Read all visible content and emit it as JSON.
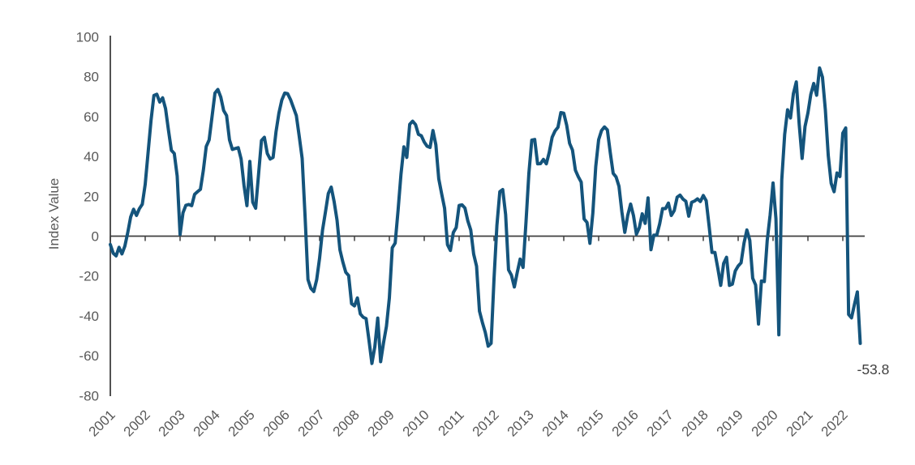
{
  "chart_data": {
    "type": "line",
    "title": "",
    "ylabel": "Index Value",
    "xlabel": "",
    "ylim": [
      -80,
      100
    ],
    "grid": false,
    "legend": {
      "visible": false
    },
    "axis_color": "#3f3f3f",
    "tick_label_color": "#595959",
    "annotation_color": "#404040",
    "y_tick_values": [
      100,
      80,
      60,
      40,
      20,
      0,
      -20,
      -40,
      -60,
      -80
    ],
    "x_tick_labels": [
      "2001",
      "2002",
      "2003",
      "2004",
      "2005",
      "2006",
      "2007",
      "2008",
      "2009",
      "2010",
      "2011",
      "2012",
      "2013",
      "2014",
      "2015",
      "2016",
      "2017",
      "2018",
      "2019",
      "2020",
      "2021",
      "2022"
    ],
    "frequency": "monthly",
    "start_label": "2001",
    "series": [
      {
        "name": "Index Value",
        "color": "#14547C",
        "values": [
          -4.2,
          -8.6,
          -9.9,
          -5.6,
          -8.9,
          -5.0,
          1.8,
          9.6,
          13.5,
          10.4,
          13.8,
          16.0,
          26.0,
          42.0,
          58.0,
          70.6,
          71.2,
          67.3,
          69.4,
          64.0,
          53.2,
          43.1,
          41.5,
          30.2,
          0.8,
          11.7,
          15.5,
          15.9,
          15.3,
          21.0,
          22.3,
          23.5,
          33.0,
          45.0,
          48.3,
          60.0,
          71.8,
          73.6,
          69.8,
          63.0,
          60.5,
          48.3,
          43.5,
          44.0,
          44.4,
          38.7,
          25.4,
          15.3,
          37.5,
          17.0,
          14.0,
          31.0,
          48.0,
          49.6,
          41.5,
          38.7,
          39.5,
          52.3,
          61.7,
          68.3,
          71.8,
          71.5,
          68.5,
          64.5,
          60.5,
          50.0,
          39.0,
          10.0,
          -21.8,
          -26.2,
          -27.8,
          -21.8,
          -11.0,
          2.9,
          12.0,
          21.4,
          24.6,
          17.3,
          8.0,
          -6.9,
          -13.0,
          -18.1,
          -19.8,
          -33.9,
          -35.0,
          -31.0,
          -39.0,
          -40.7,
          -41.4,
          -52.4,
          -63.9,
          -55.5,
          -41.1,
          -63.0,
          -53.5,
          -45.2,
          -31.0,
          -5.8,
          -3.5,
          13.0,
          31.1,
          44.8,
          39.5,
          56.1,
          57.7,
          56.0,
          51.1,
          50.4,
          47.2,
          45.1,
          44.5,
          53.0,
          45.8,
          28.7,
          21.2,
          14.0,
          -4.3,
          -7.2,
          1.8,
          4.3,
          15.4,
          15.7,
          14.1,
          7.6,
          3.1,
          -9.0,
          -15.1,
          -37.6,
          -43.3,
          -48.3,
          -55.2,
          -53.8,
          -21.6,
          5.4,
          22.3,
          23.4,
          10.8,
          -16.9,
          -19.6,
          -25.5,
          -18.2,
          -11.5,
          -15.7,
          6.9,
          31.5,
          48.2,
          48.5,
          36.3,
          36.4,
          38.5,
          36.3,
          42.0,
          49.6,
          52.8,
          54.6,
          62.0,
          61.7,
          55.7,
          46.6,
          43.2,
          33.1,
          29.8,
          27.1,
          8.6,
          6.9,
          -3.6,
          11.5,
          34.9,
          48.4,
          53.0,
          54.8,
          53.3,
          41.9,
          31.5,
          29.7,
          25.0,
          12.1,
          1.9,
          10.4,
          16.1,
          10.2,
          1.0,
          4.3,
          11.2,
          6.4,
          19.2,
          -6.8,
          0.5,
          0.5,
          6.2,
          13.8,
          13.8,
          16.6,
          10.4,
          12.8,
          19.5,
          20.6,
          18.6,
          17.5,
          10.0,
          17.0,
          17.6,
          18.7,
          17.4,
          20.4,
          17.8,
          5.1,
          -8.2,
          -8.2,
          -16.1,
          -24.7,
          -13.7,
          -10.6,
          -24.7,
          -24.1,
          -17.5,
          -15.0,
          -13.4,
          -3.6,
          3.1,
          -2.1,
          -21.1,
          -24.5,
          -44.1,
          -22.5,
          -22.8,
          -2.1,
          10.7,
          26.7,
          8.7,
          -49.5,
          28.2,
          51.0,
          63.4,
          59.3,
          71.5,
          77.4,
          56.1,
          39.0,
          55.0,
          61.8,
          71.2,
          76.6,
          70.7,
          84.4,
          79.8,
          63.3,
          40.4,
          26.5,
          22.3,
          31.7,
          29.9,
          51.7,
          54.3,
          -39.3,
          -41.0,
          -34.3,
          -28.0,
          -53.8
        ]
      }
    ],
    "annotations": [
      {
        "text": "-53.8",
        "attach": "last-point"
      }
    ]
  }
}
